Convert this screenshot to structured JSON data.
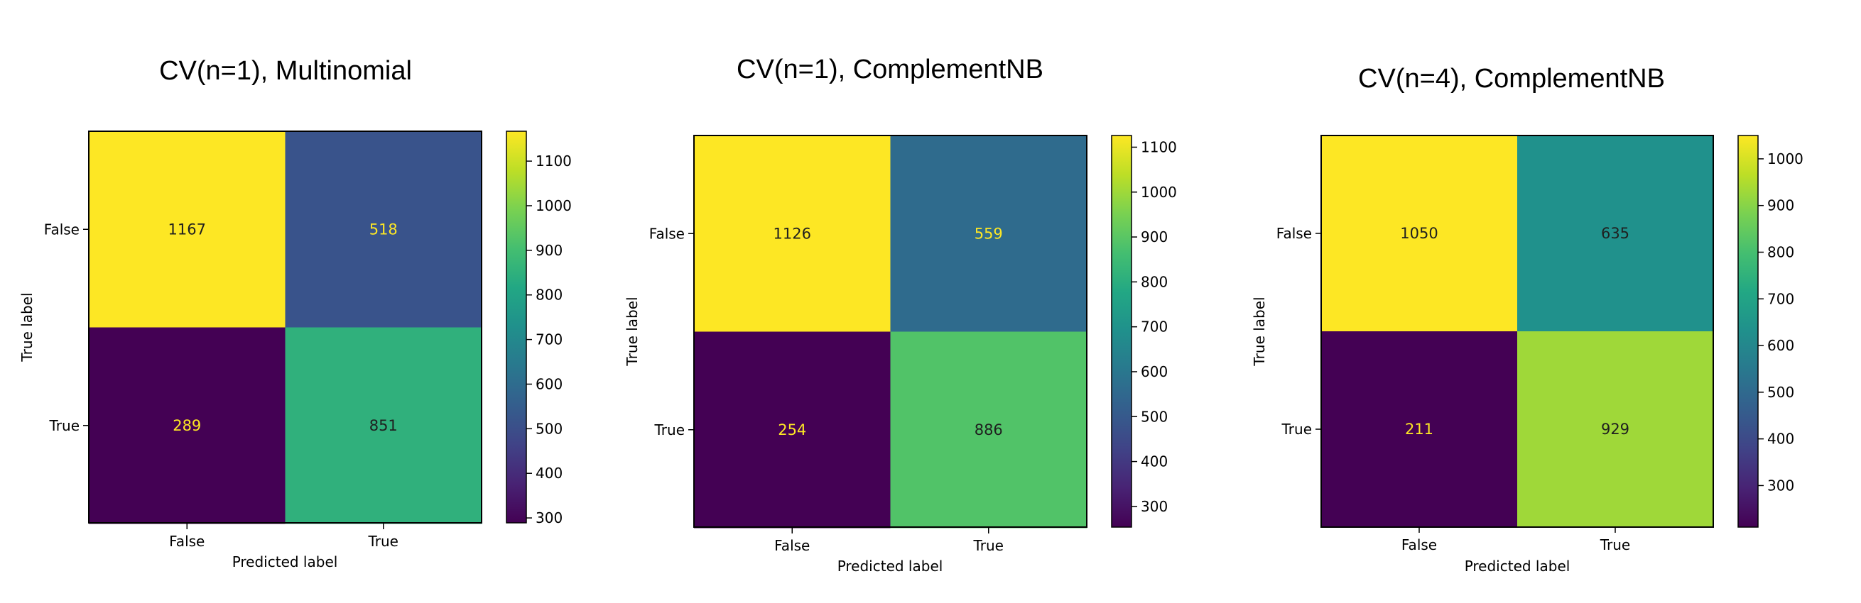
{
  "chart_data": [
    {
      "type": "heatmap",
      "title": "CV(n=1), Multinomial",
      "xlabel": "Predicted label",
      "ylabel": "True label",
      "x_categories": [
        "False",
        "True"
      ],
      "y_categories": [
        "False",
        "True"
      ],
      "values": [
        [
          1167,
          518
        ],
        [
          289,
          851
        ]
      ],
      "colormap": "viridis",
      "colorbar": {
        "min": 289,
        "max": 1167,
        "ticks": [
          300,
          400,
          500,
          600,
          700,
          800,
          900,
          1000,
          1100
        ]
      },
      "grid": false
    },
    {
      "type": "heatmap",
      "title": "CV(n=1), ComplementNB",
      "xlabel": "Predicted label",
      "ylabel": "True label",
      "x_categories": [
        "False",
        "True"
      ],
      "y_categories": [
        "False",
        "True"
      ],
      "values": [
        [
          1126,
          559
        ],
        [
          254,
          886
        ]
      ],
      "colormap": "viridis",
      "colorbar": {
        "min": 254,
        "max": 1126,
        "ticks": [
          300,
          400,
          500,
          600,
          700,
          800,
          900,
          1000,
          1100
        ]
      },
      "grid": false
    },
    {
      "type": "heatmap",
      "title": "CV(n=4), ComplementNB",
      "xlabel": "Predicted label",
      "ylabel": "True label",
      "x_categories": [
        "False",
        "True"
      ],
      "y_categories": [
        "False",
        "True"
      ],
      "values": [
        [
          1050,
          635
        ],
        [
          211,
          929
        ]
      ],
      "colormap": "viridis",
      "colorbar": {
        "min": 211,
        "max": 1050,
        "ticks": [
          300,
          400,
          500,
          600,
          700,
          800,
          900,
          1000
        ]
      },
      "grid": false
    }
  ]
}
